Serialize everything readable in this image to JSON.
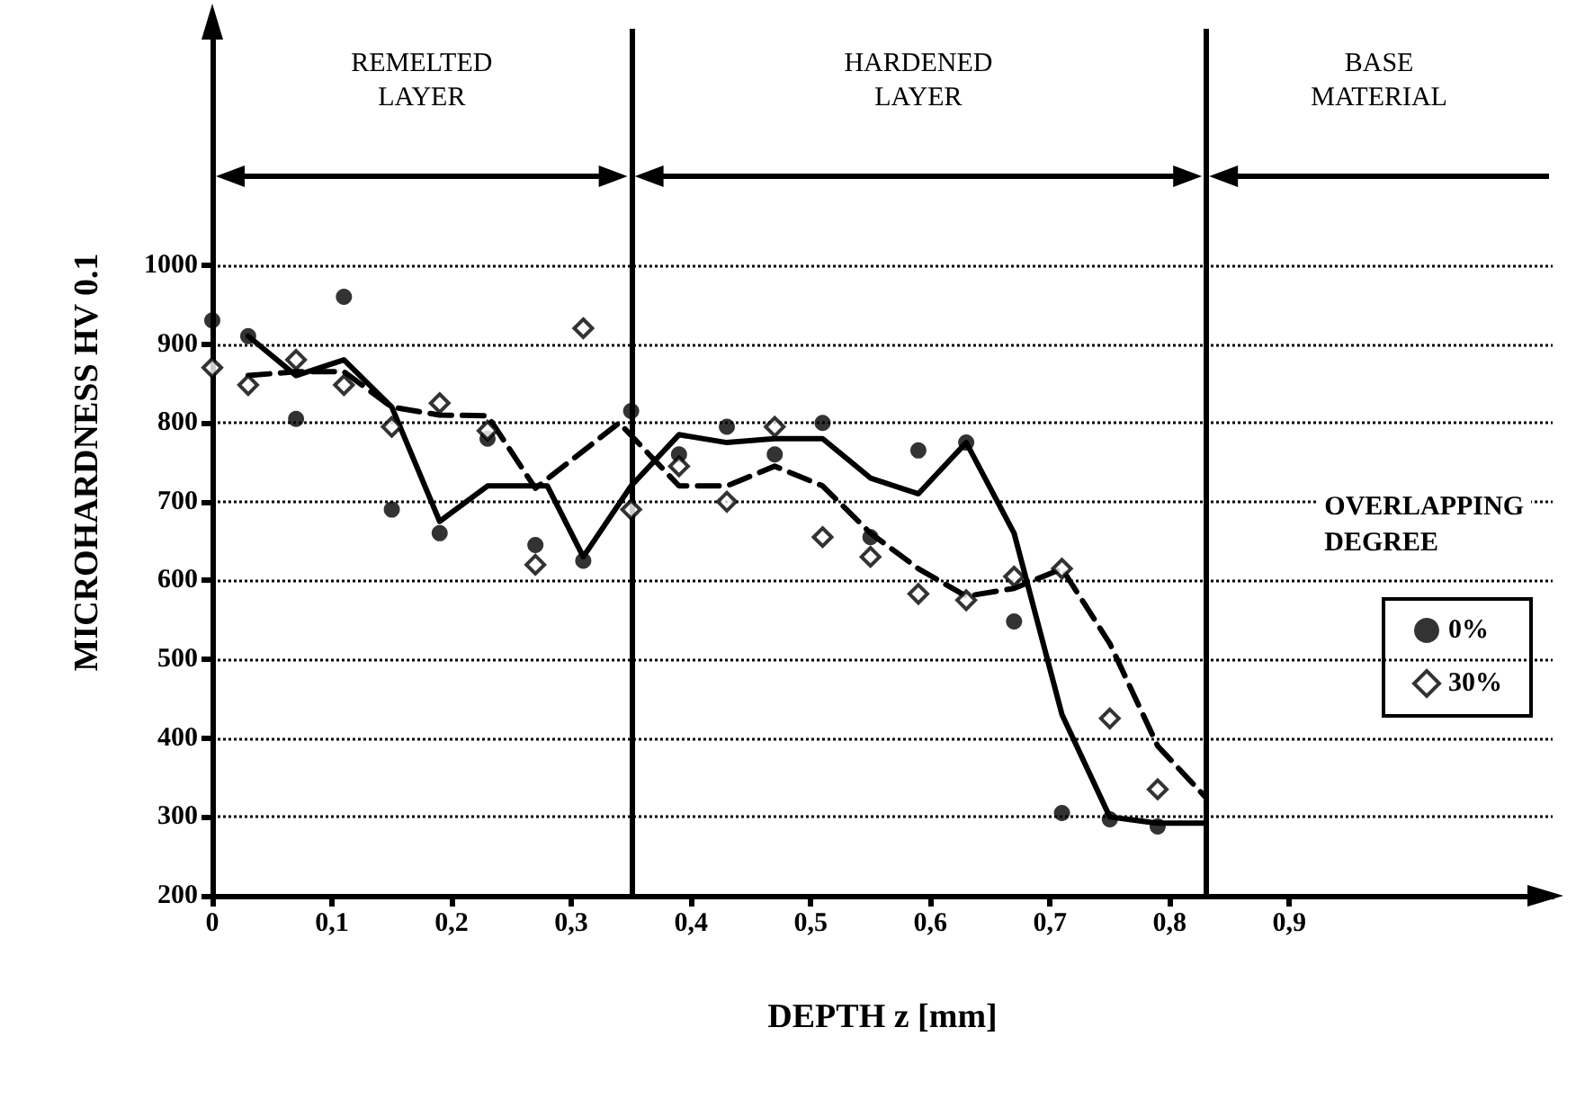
{
  "chart_data": {
    "type": "scatter",
    "xlabel": "DEPTH z [mm]",
    "ylabel": "MICROHARDNESS HV 0.1",
    "legend_title": "OVERLAPPING DEGREE",
    "annotations": [
      "REMELTED LAYER",
      "HARDENED LAYER",
      "BASE MATERIAL"
    ],
    "xlim": [
      0,
      1.12
    ],
    "ylim": [
      200,
      1300
    ],
    "xticks": [
      0,
      {
        "value": 0.1,
        "label": "0,1"
      },
      {
        "value": 0.2,
        "label": "0,2"
      },
      {
        "value": 0.3,
        "label": "0,3"
      },
      {
        "value": 0.4,
        "label": "0,4"
      },
      {
        "value": 0.5,
        "label": "0,5"
      },
      {
        "value": 0.6,
        "label": "0,6"
      },
      {
        "value": 0.7,
        "label": "0,7"
      },
      {
        "value": 0.8,
        "label": "0,8"
      },
      {
        "value": 0.9,
        "label": "0,9"
      }
    ],
    "yticks": [
      200,
      300,
      400,
      500,
      600,
      700,
      800,
      900,
      1000
    ],
    "grid": "y",
    "legend": "right",
    "ref_lines": [
      {
        "axis": "x",
        "value": 0.35,
        "color": "#000000"
      },
      {
        "axis": "x",
        "value": 0.83,
        "color": "#000000"
      }
    ],
    "series": [
      {
        "name": "0%",
        "type": "scatter",
        "color": "#000000",
        "marker": "circle",
        "x": [
          0,
          0.03,
          0.07,
          0.11,
          0.15,
          0.19,
          0.23,
          0.27,
          0.31,
          0.35,
          0.39,
          0.43,
          0.47,
          0.51,
          0.55,
          0.59,
          0.63,
          0.67,
          0.71,
          0.75,
          0.79
        ],
        "values": [
          930,
          910,
          805,
          960,
          690,
          660,
          780,
          645,
          625,
          815,
          760,
          795,
          760,
          800,
          655,
          765,
          775,
          548,
          305,
          297,
          288
        ]
      },
      {
        "name": "30%",
        "type": "scatter",
        "color": "#000000",
        "marker": "diamond",
        "x": [
          0,
          0.03,
          0.07,
          0.11,
          0.15,
          0.19,
          0.23,
          0.27,
          0.31,
          0.35,
          0.39,
          0.43,
          0.47,
          0.51,
          0.55,
          0.59,
          0.63,
          0.67,
          0.71,
          0.75,
          0.79
        ],
        "values": [
          870,
          848,
          880,
          848,
          795,
          825,
          790,
          620,
          920,
          690,
          745,
          700,
          795,
          655,
          630,
          583,
          575,
          605,
          615,
          425,
          335
        ]
      },
      {
        "type": "line",
        "color": "#000000",
        "line_style": "solid",
        "marker": "none",
        "x": [
          0.03,
          0.07,
          0.11,
          0.15,
          0.19,
          0.23,
          0.28,
          0.31,
          0.35,
          0.39,
          0.43,
          0.47,
          0.51,
          0.55,
          0.59,
          0.63,
          0.67,
          0.71,
          0.75,
          0.79,
          0.83
        ],
        "values": [
          910,
          860,
          880,
          820,
          675,
          720,
          720,
          630,
          720,
          785,
          775,
          780,
          780,
          730,
          710,
          775,
          660,
          430,
          300,
          292,
          292
        ]
      },
      {
        "type": "line",
        "color": "#000000",
        "line_style": "dashed",
        "marker": "none",
        "x": [
          0.03,
          0.07,
          0.11,
          0.15,
          0.19,
          0.23,
          0.27,
          0.34,
          0.39,
          0.43,
          0.47,
          0.51,
          0.55,
          0.59,
          0.63,
          0.67,
          0.71,
          0.75,
          0.79,
          0.83
        ],
        "values": [
          860,
          865,
          865,
          820,
          810,
          809,
          717,
          800,
          720,
          720,
          745,
          720,
          660,
          615,
          580,
          590,
          615,
          520,
          390,
          325
        ]
      }
    ]
  }
}
